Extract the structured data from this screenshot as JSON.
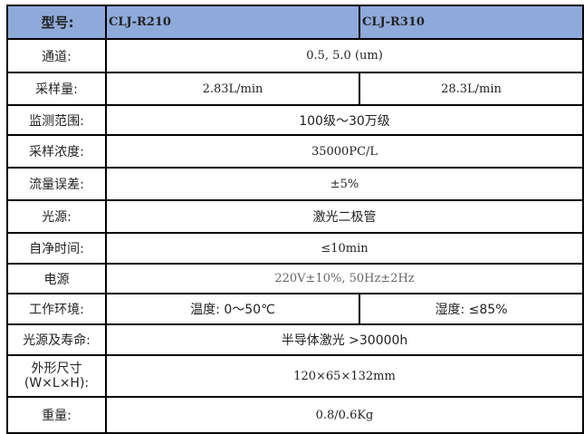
{
  "header": {
    "label": "型号:",
    "models": [
      "CLJ-R210",
      "CLJ-R310"
    ],
    "bg_color": "#8eaadb"
  },
  "rows": [
    {
      "label": "通道:",
      "value": "0.5, 5.0 (um)"
    },
    {
      "label": "采样量:",
      "values": [
        "2.83L/min",
        "28.3L/min"
      ]
    },
    {
      "label": "监测范围:",
      "value": "100级～30万级"
    },
    {
      "label": "采样浓度:",
      "value": "35000PC/L"
    },
    {
      "label": "流量误差:",
      "value": "±5%"
    },
    {
      "label": "光源:",
      "value": "激光二极管"
    },
    {
      "label": "自净时间:",
      "value": "≤10min"
    },
    {
      "label": "电源",
      "value": "220V±10%, 50Hz±2Hz"
    },
    {
      "label": "工作环境:",
      "values": [
        "温度: 0～50℃",
        "湿度: ≤85%"
      ]
    },
    {
      "label": "光源及寿命:",
      "value": "半导体激光 >30000h"
    },
    {
      "label": "外形尺寸",
      "label2": "(W×L×H):",
      "value": "120×65×132mm"
    },
    {
      "label": "重量:",
      "value": "0.8/0.6Kg"
    }
  ]
}
